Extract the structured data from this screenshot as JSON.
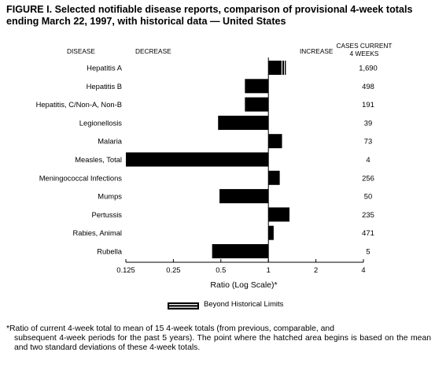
{
  "title": {
    "line1": "FIGURE I. Selected notifiable disease reports, comparison of provisional 4-week totals",
    "line2": "ending March 22, 1997, with historical data — United States"
  },
  "headers": {
    "disease": "DISEASE",
    "decrease": "DECREASE",
    "increase": "INCREASE",
    "cases_line1": "CASES CURRENT",
    "cases_line2": "4 WEEKS"
  },
  "legend": {
    "label": "Beyond Historical Limits"
  },
  "footnote": {
    "line1": "*Ratio of current 4-week total to mean of 15 4-week totals (from previous, comparable, and",
    "rest": "subsequent 4-week periods for the past 5 years). The point where the hatched area begins is based on the mean and two standard deviations of these 4-week totals."
  },
  "chart_data": {
    "type": "bar",
    "orientation": "horizontal",
    "scale": "log",
    "baseline": 1,
    "xlabel": "Ratio (Log Scale)*",
    "xticks": [
      0.125,
      0.25,
      0.5,
      1,
      2,
      4
    ],
    "xtick_labels": [
      "0.125",
      "0.25",
      "0.5",
      "1",
      "2",
      "4"
    ],
    "xlim": [
      0.125,
      4
    ],
    "categories": [
      "Hepatitis A",
      "Hepatitis B",
      "Hepatitis, C/Non-A, Non-B",
      "Legionellosis",
      "Malaria",
      "Measles, Total",
      "Meningococcal Infections",
      "Mumps",
      "Pertussis",
      "Rabies, Animal",
      "Rubella"
    ],
    "values": [
      1.29,
      0.71,
      0.71,
      0.48,
      1.22,
      0.125,
      1.18,
      0.49,
      1.36,
      1.08,
      0.44
    ],
    "beyond_historical_limits_start": [
      1.21,
      null,
      null,
      null,
      null,
      null,
      null,
      null,
      null,
      null,
      null
    ],
    "cases_current_4_weeks": [
      "1,690",
      "498",
      "191",
      "39",
      "73",
      "4",
      "256",
      "50",
      "235",
      "471",
      "5"
    ],
    "colors": {
      "bar": "#000000",
      "hatch": "#ffffff"
    }
  }
}
